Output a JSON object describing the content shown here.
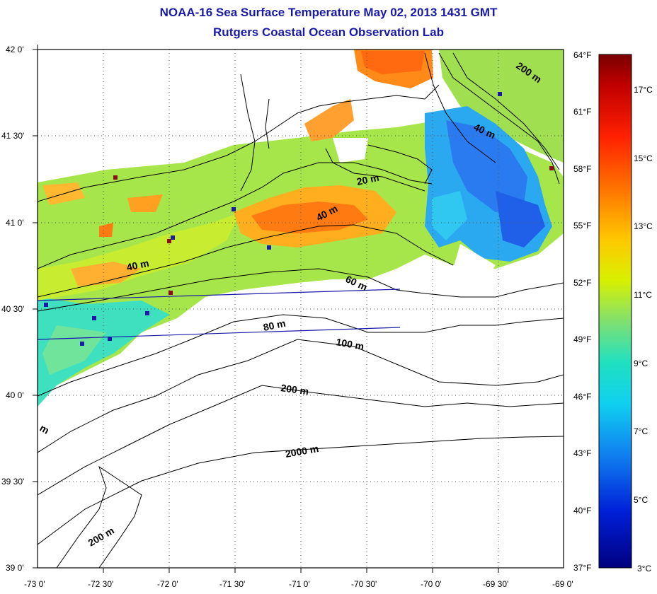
{
  "title": "NOAA-16 Sea Surface Temperature May 02, 2013 1431 GMT",
  "subtitle": "Rutgers Coastal Ocean Observation Lab",
  "map": {
    "lat_labels": [
      "42 0'",
      "41 30'",
      "41 0'",
      "40 30'",
      "40 0'",
      "39 30'",
      "39 0'"
    ],
    "lon_labels": [
      "-73 0'",
      "-72 30'",
      "-72 0'",
      "-71 30'",
      "-71 0'",
      "-70 30'",
      "-70 0'",
      "-69 30'",
      "-69 0'"
    ],
    "lon_range": [
      -73.0,
      -69.0
    ],
    "lat_range": [
      39.0,
      42.0
    ],
    "grid": "dotted",
    "contour_labels": [
      "20 m",
      "40 m",
      "40 m",
      "40 m",
      "60 m",
      "80 m",
      "100 m",
      "200 m",
      "200 m",
      "200 m",
      "2000 m",
      "m"
    ]
  },
  "colorbar": {
    "f_labels": [
      "64°F",
      "61°F",
      "58°F",
      "55°F",
      "52°F",
      "49°F",
      "46°F",
      "43°F",
      "40°F",
      "37°F"
    ],
    "c_labels": [
      "17°C",
      "15°C",
      "13°C",
      "11°C",
      "9°C",
      "7°C",
      "5°C",
      "3°C"
    ],
    "stops": [
      "#7a0000",
      "#d40000",
      "#ff3a00",
      "#ff8a00",
      "#ffd000",
      "#d8f000",
      "#7ee06a",
      "#20e0c0",
      "#10d8f0",
      "#1080f0",
      "#0030e0",
      "#00008a"
    ]
  }
}
